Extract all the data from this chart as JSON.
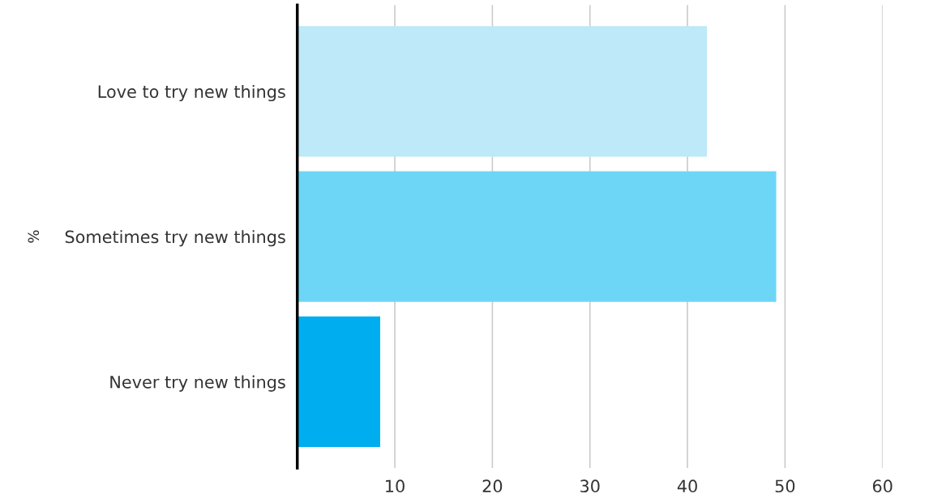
{
  "chart_data": {
    "type": "bar",
    "orientation": "horizontal",
    "ylabel": "%",
    "categories": [
      "Love to try new things",
      "Sometimes try new things",
      "Never try new things"
    ],
    "values": [
      42,
      49.1,
      8.5
    ],
    "colors": [
      "#bde9f8",
      "#6dd6f7",
      "#00aeef"
    ],
    "xlim": [
      0,
      60
    ],
    "xticks": [
      10,
      20,
      30,
      40,
      50,
      60
    ],
    "grid": "x",
    "legend": false
  }
}
